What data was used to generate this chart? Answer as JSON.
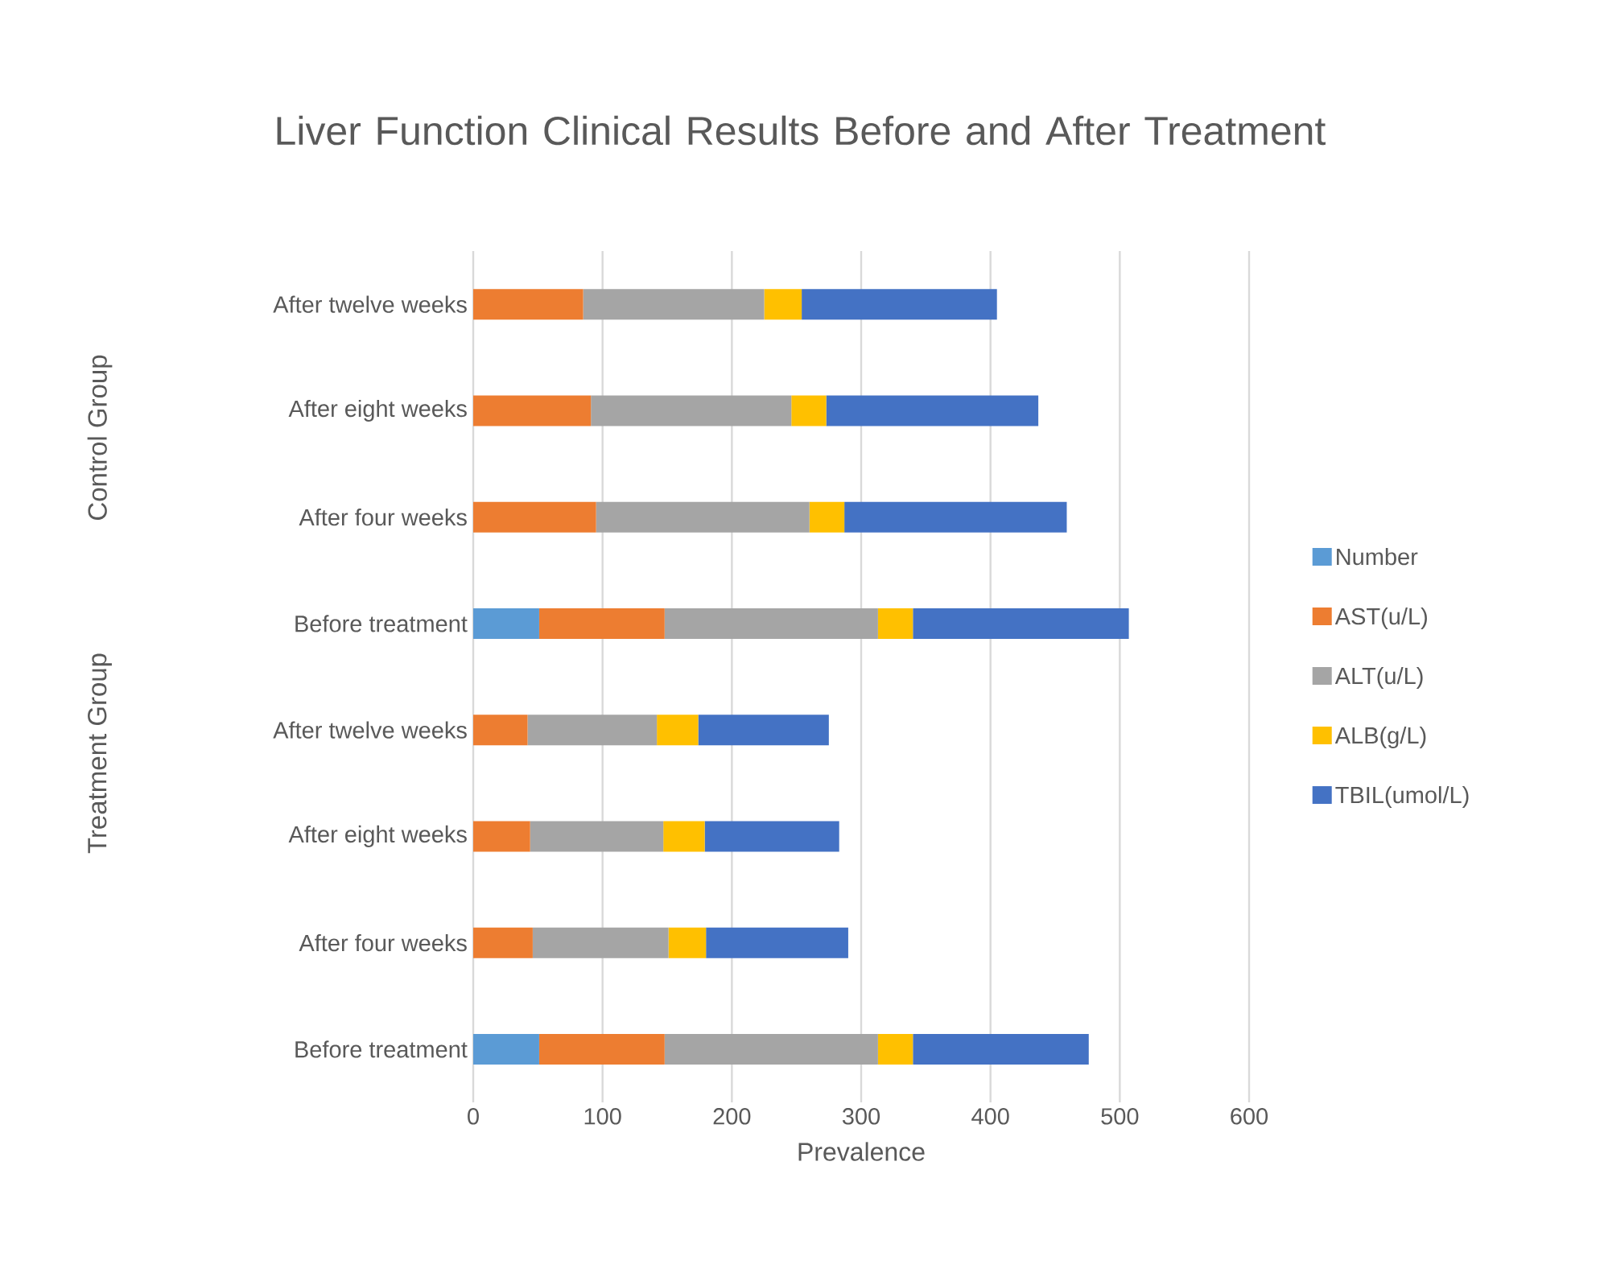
{
  "chart_data": {
    "type": "bar",
    "orientation": "horizontal",
    "stacked": true,
    "title": "Liver Function Clinical Results Before and After Treatment",
    "xlabel": "Prevalence",
    "categories": [
      "After twelve weeks",
      "After eight weeks",
      "After four weeks",
      "Before treatment",
      "After twelve weeks",
      "After eight weeks",
      "After four weeks",
      "Before treatment"
    ],
    "series": [
      {
        "name": "Number",
        "color": "#5b9bd5",
        "values": [
          null,
          null,
          null,
          51,
          null,
          null,
          null,
          51
        ]
      },
      {
        "name": "AST(u/L)",
        "color": "#ed7d31",
        "values": [
          85,
          91,
          95,
          97,
          42,
          44,
          46,
          97
        ]
      },
      {
        "name": "ALT(u/L)",
        "color": "#a5a5a5",
        "values": [
          140,
          155,
          165,
          165,
          100,
          103,
          105,
          165
        ]
      },
      {
        "name": "ALB(g/L)",
        "color": "#ffc000",
        "values": [
          29,
          27,
          27,
          27,
          32,
          32,
          29,
          27
        ]
      },
      {
        "name": "TBIL(umol/L)",
        "color": "#4472c4",
        "values": [
          151,
          164,
          172,
          167,
          101,
          104,
          110,
          136
        ]
      }
    ],
    "xlim": [
      0,
      600
    ],
    "xticks": [
      0,
      100,
      200,
      300,
      400,
      500,
      600
    ],
    "grid": "x",
    "legend": "right",
    "annotations": [
      "Control Group",
      "Treatment Group"
    ]
  }
}
